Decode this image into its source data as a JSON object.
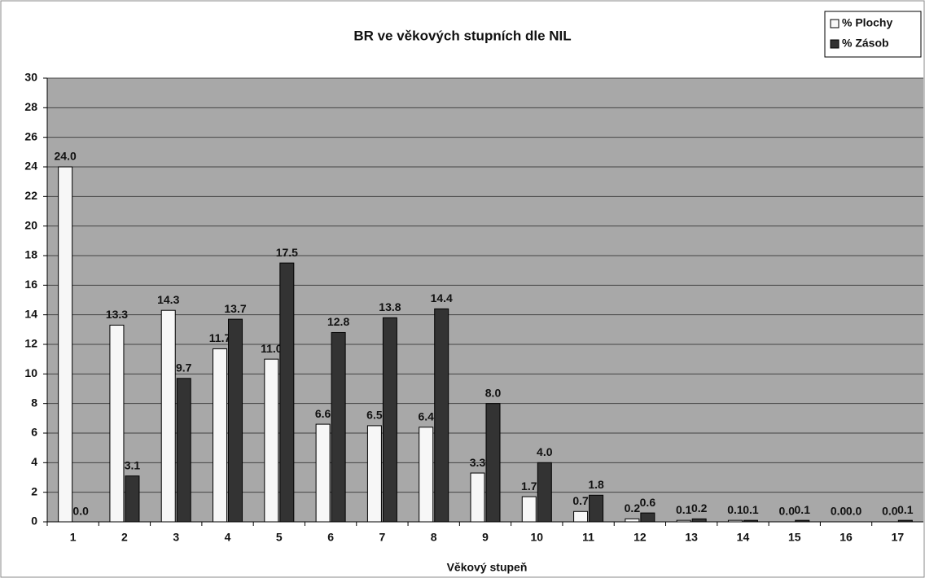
{
  "chart_data": {
    "type": "bar",
    "title": "BR ve věkových stupních dle NIL",
    "x_label": "Věkový stupeň",
    "categories": [
      "1",
      "2",
      "3",
      "4",
      "5",
      "6",
      "7",
      "8",
      "9",
      "10",
      "11",
      "12",
      "13",
      "14",
      "15",
      "16",
      "17"
    ],
    "series": [
      {
        "name": "% Plochy",
        "color": "#f7f7f7",
        "values": [
          24.0,
          13.3,
          14.3,
          11.7,
          11.0,
          6.6,
          6.5,
          6.4,
          3.3,
          1.7,
          0.7,
          0.2,
          0.1,
          0.1,
          0.0,
          0.0,
          0.0
        ],
        "value_labels": [
          "24.0",
          "13.3",
          "14.3",
          "11.7",
          "11.0",
          "6.6",
          "6.5",
          "6.4",
          "3.3",
          "1.7",
          "0.7",
          "0.2",
          "0.1",
          "0.1",
          "0.0",
          "0.0",
          "0.0"
        ]
      },
      {
        "name": "% Zásob",
        "color": "#333333",
        "values": [
          0.0,
          3.1,
          9.7,
          13.7,
          17.5,
          12.8,
          13.8,
          14.4,
          8.0,
          4.0,
          1.8,
          0.6,
          0.2,
          0.1,
          0.1,
          0.0,
          0.1
        ],
        "value_labels": [
          "0.0",
          "3.1",
          "9.7",
          "13.7",
          "17.5",
          "12.8",
          "13.8",
          "14.4",
          "8.0",
          "4.0",
          "1.8",
          "0.6",
          "0.2",
          "0.1",
          "0.1",
          "0.0",
          "0.1"
        ]
      }
    ],
    "ylim": [
      0,
      30
    ],
    "yticks": [
      0,
      2,
      4,
      6,
      8,
      10,
      12,
      14,
      16,
      18,
      20,
      22,
      24,
      26,
      28,
      30
    ],
    "grid": true,
    "legend": "top-right",
    "plot_background": "#a8a8a8"
  }
}
